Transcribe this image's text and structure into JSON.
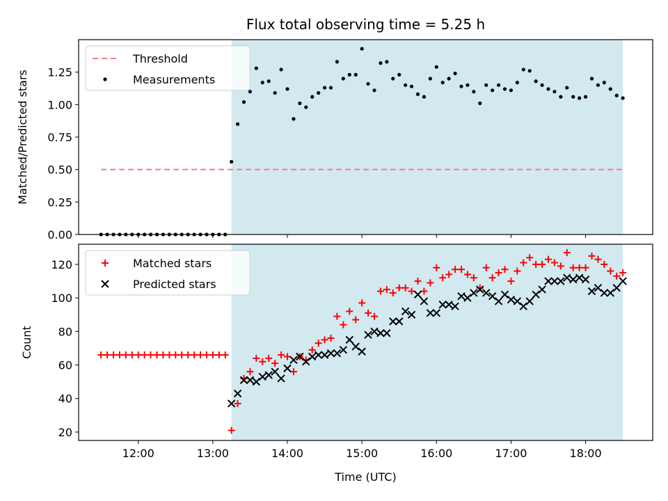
{
  "chart_data": [
    {
      "type": "scatter",
      "title": "Flux total observing time = 5.25 h",
      "xlabel": "",
      "ylabel": "Matched/Predicted stars",
      "xlim": [
        "11:12",
        "18:54"
      ],
      "ylim": [
        0,
        1.5
      ],
      "yticks": [
        "0.00",
        "0.25",
        "0.50",
        "0.75",
        "1.00",
        "1.25"
      ],
      "legend_placement": "upper-left",
      "shaded_region": {
        "from": "13:15",
        "to": "18:30",
        "color": "#d2e9f0"
      },
      "threshold": {
        "name": "Threshold",
        "value": 0.5,
        "from": "11:30",
        "to": "18:30",
        "color": "#f08080",
        "style": "dashed"
      },
      "series": [
        {
          "name": "Measurements",
          "color": "#000000",
          "marker": "dot",
          "points": [
            [
              "11:30",
              0
            ],
            [
              "11:35",
              0
            ],
            [
              "11:40",
              0
            ],
            [
              "11:45",
              0
            ],
            [
              "11:50",
              0
            ],
            [
              "11:55",
              0
            ],
            [
              "12:00",
              0
            ],
            [
              "12:05",
              0
            ],
            [
              "12:10",
              0
            ],
            [
              "12:15",
              0
            ],
            [
              "12:20",
              0
            ],
            [
              "12:25",
              0
            ],
            [
              "12:30",
              0
            ],
            [
              "12:35",
              0
            ],
            [
              "12:40",
              0
            ],
            [
              "12:45",
              0
            ],
            [
              "12:50",
              0
            ],
            [
              "12:55",
              0
            ],
            [
              "13:00",
              0
            ],
            [
              "13:05",
              0
            ],
            [
              "13:10",
              0
            ],
            [
              "13:15",
              0.56
            ],
            [
              "13:20",
              0.85
            ],
            [
              "13:25",
              1.02
            ],
            [
              "13:30",
              1.1
            ],
            [
              "13:35",
              1.28
            ],
            [
              "13:40",
              1.17
            ],
            [
              "13:45",
              1.18
            ],
            [
              "13:50",
              1.09
            ],
            [
              "13:55",
              1.27
            ],
            [
              "14:00",
              1.12
            ],
            [
              "14:05",
              0.89
            ],
            [
              "14:10",
              1.01
            ],
            [
              "14:15",
              0.98
            ],
            [
              "14:20",
              1.06
            ],
            [
              "14:25",
              1.09
            ],
            [
              "14:30",
              1.13
            ],
            [
              "14:35",
              1.13
            ],
            [
              "14:40",
              1.33
            ],
            [
              "14:45",
              1.2
            ],
            [
              "14:50",
              1.23
            ],
            [
              "14:55",
              1.23
            ],
            [
              "15:00",
              1.43
            ],
            [
              "15:05",
              1.16
            ],
            [
              "15:10",
              1.11
            ],
            [
              "15:15",
              1.32
            ],
            [
              "15:20",
              1.33
            ],
            [
              "15:25",
              1.2
            ],
            [
              "15:30",
              1.23
            ],
            [
              "15:35",
              1.15
            ],
            [
              "15:40",
              1.14
            ],
            [
              "15:45",
              1.08
            ],
            [
              "15:50",
              1.06
            ],
            [
              "15:55",
              1.2
            ],
            [
              "16:00",
              1.29
            ],
            [
              "16:05",
              1.17
            ],
            [
              "16:10",
              1.2
            ],
            [
              "16:15",
              1.24
            ],
            [
              "16:20",
              1.14
            ],
            [
              "16:25",
              1.15
            ],
            [
              "16:30",
              1.1
            ],
            [
              "16:35",
              1.01
            ],
            [
              "16:40",
              1.15
            ],
            [
              "16:45",
              1.11
            ],
            [
              "16:50",
              1.15
            ],
            [
              "16:55",
              1.12
            ],
            [
              "17:00",
              1.11
            ],
            [
              "17:05",
              1.17
            ],
            [
              "17:10",
              1.27
            ],
            [
              "17:15",
              1.26
            ],
            [
              "17:20",
              1.18
            ],
            [
              "17:25",
              1.15
            ],
            [
              "17:30",
              1.12
            ],
            [
              "17:35",
              1.1
            ],
            [
              "17:40",
              1.06
            ],
            [
              "17:45",
              1.13
            ],
            [
              "17:50",
              1.06
            ],
            [
              "17:55",
              1.05
            ],
            [
              "18:00",
              1.06
            ],
            [
              "18:05",
              1.2
            ],
            [
              "18:10",
              1.15
            ],
            [
              "18:15",
              1.17
            ],
            [
              "18:20",
              1.12
            ],
            [
              "18:25",
              1.07
            ],
            [
              "18:30",
              1.05
            ]
          ]
        }
      ]
    },
    {
      "type": "scatter",
      "title": "",
      "xlabel": "Time (UTC)",
      "ylabel": "Count",
      "xlim": [
        "11:12",
        "18:54"
      ],
      "ylim": [
        15,
        132
      ],
      "xticks": [
        "12:00",
        "13:00",
        "14:00",
        "15:00",
        "16:00",
        "17:00",
        "18:00"
      ],
      "yticks": [
        "20",
        "40",
        "60",
        "80",
        "100",
        "120"
      ],
      "legend_placement": "upper-left",
      "shaded_region": {
        "from": "13:15",
        "to": "18:30",
        "color": "#d2e9f0"
      },
      "series": [
        {
          "name": "Matched stars",
          "color": "#ff0000",
          "marker": "plus",
          "points": [
            [
              "11:30",
              66
            ],
            [
              "11:35",
              66
            ],
            [
              "11:40",
              66
            ],
            [
              "11:45",
              66
            ],
            [
              "11:50",
              66
            ],
            [
              "11:55",
              66
            ],
            [
              "12:00",
              66
            ],
            [
              "12:05",
              66
            ],
            [
              "12:10",
              66
            ],
            [
              "12:15",
              66
            ],
            [
              "12:20",
              66
            ],
            [
              "12:25",
              66
            ],
            [
              "12:30",
              66
            ],
            [
              "12:35",
              66
            ],
            [
              "12:40",
              66
            ],
            [
              "12:45",
              66
            ],
            [
              "12:50",
              66
            ],
            [
              "12:55",
              66
            ],
            [
              "13:00",
              66
            ],
            [
              "13:05",
              66
            ],
            [
              "13:10",
              66
            ],
            [
              "13:15",
              21
            ],
            [
              "13:20",
              37
            ],
            [
              "13:25",
              52
            ],
            [
              "13:30",
              56
            ],
            [
              "13:35",
              64
            ],
            [
              "13:40",
              62
            ],
            [
              "13:45",
              64
            ],
            [
              "13:50",
              61
            ],
            [
              "13:55",
              66
            ],
            [
              "14:00",
              65
            ],
            [
              "14:05",
              56
            ],
            [
              "14:10",
              65
            ],
            [
              "14:15",
              63
            ],
            [
              "14:20",
              69
            ],
            [
              "14:25",
              73
            ],
            [
              "14:30",
              75
            ],
            [
              "14:35",
              76
            ],
            [
              "14:40",
              89
            ],
            [
              "14:45",
              84
            ],
            [
              "14:50",
              92
            ],
            [
              "14:55",
              87
            ],
            [
              "15:00",
              97
            ],
            [
              "15:05",
              91
            ],
            [
              "15:10",
              89
            ],
            [
              "15:15",
              104
            ],
            [
              "15:20",
              105
            ],
            [
              "15:25",
              103
            ],
            [
              "15:30",
              106
            ],
            [
              "15:35",
              106
            ],
            [
              "15:40",
              104
            ],
            [
              "15:45",
              110
            ],
            [
              "15:50",
              104
            ],
            [
              "15:55",
              109
            ],
            [
              "16:00",
              118
            ],
            [
              "16:05",
              112
            ],
            [
              "16:10",
              114
            ],
            [
              "16:15",
              117
            ],
            [
              "16:20",
              117
            ],
            [
              "16:25",
              114
            ],
            [
              "16:30",
              112
            ],
            [
              "16:35",
              106
            ],
            [
              "16:40",
              118
            ],
            [
              "16:45",
              112
            ],
            [
              "16:50",
              115
            ],
            [
              "16:55",
              117
            ],
            [
              "17:00",
              110
            ],
            [
              "17:05",
              116
            ],
            [
              "17:10",
              121
            ],
            [
              "17:15",
              124
            ],
            [
              "17:20",
              120
            ],
            [
              "17:25",
              120
            ],
            [
              "17:30",
              123
            ],
            [
              "17:35",
              121
            ],
            [
              "17:40",
              119
            ],
            [
              "17:45",
              127
            ],
            [
              "17:50",
              118
            ],
            [
              "17:55",
              118
            ],
            [
              "18:00",
              118
            ],
            [
              "18:05",
              125
            ],
            [
              "18:10",
              123
            ],
            [
              "18:15",
              120
            ],
            [
              "18:20",
              116
            ],
            [
              "18:25",
              113
            ],
            [
              "18:30",
              115
            ]
          ]
        },
        {
          "name": "Predicted stars",
          "color": "#000000",
          "marker": "x",
          "points": [
            [
              "13:15",
              37
            ],
            [
              "13:20",
              43
            ],
            [
              "13:25",
              51
            ],
            [
              "13:30",
              51
            ],
            [
              "13:35",
              50
            ],
            [
              "13:40",
              53
            ],
            [
              "13:45",
              54
            ],
            [
              "13:50",
              56
            ],
            [
              "13:55",
              52
            ],
            [
              "14:00",
              58
            ],
            [
              "14:05",
              63
            ],
            [
              "14:10",
              65
            ],
            [
              "14:15",
              62
            ],
            [
              "14:20",
              65
            ],
            [
              "14:25",
              66
            ],
            [
              "14:30",
              66
            ],
            [
              "14:35",
              67
            ],
            [
              "14:40",
              67
            ],
            [
              "14:45",
              69
            ],
            [
              "14:50",
              75
            ],
            [
              "14:55",
              71
            ],
            [
              "15:00",
              68
            ],
            [
              "15:05",
              78
            ],
            [
              "15:10",
              80
            ],
            [
              "15:15",
              79
            ],
            [
              "15:20",
              79
            ],
            [
              "15:25",
              86
            ],
            [
              "15:30",
              86
            ],
            [
              "15:35",
              92
            ],
            [
              "15:40",
              90
            ],
            [
              "15:45",
              102
            ],
            [
              "15:50",
              98
            ],
            [
              "15:55",
              91
            ],
            [
              "16:00",
              91
            ],
            [
              "16:05",
              96
            ],
            [
              "16:10",
              96
            ],
            [
              "16:15",
              95
            ],
            [
              "16:20",
              101
            ],
            [
              "16:25",
              100
            ],
            [
              "16:30",
              103
            ],
            [
              "16:35",
              105
            ],
            [
              "16:40",
              103
            ],
            [
              "16:45",
              101
            ],
            [
              "16:50",
              98
            ],
            [
              "16:55",
              102
            ],
            [
              "17:00",
              99
            ],
            [
              "17:05",
              98
            ],
            [
              "17:10",
              95
            ],
            [
              "17:15",
              98
            ],
            [
              "17:20",
              102
            ],
            [
              "17:25",
              105
            ],
            [
              "17:30",
              110
            ],
            [
              "17:35",
              110
            ],
            [
              "17:40",
              110
            ],
            [
              "17:45",
              112
            ],
            [
              "17:50",
              111
            ],
            [
              "17:55",
              112
            ],
            [
              "18:00",
              111
            ],
            [
              "18:05",
              104
            ],
            [
              "18:10",
              106
            ],
            [
              "18:15",
              103
            ],
            [
              "18:20",
              103
            ],
            [
              "18:25",
              106
            ],
            [
              "18:30",
              110
            ]
          ]
        }
      ]
    }
  ]
}
